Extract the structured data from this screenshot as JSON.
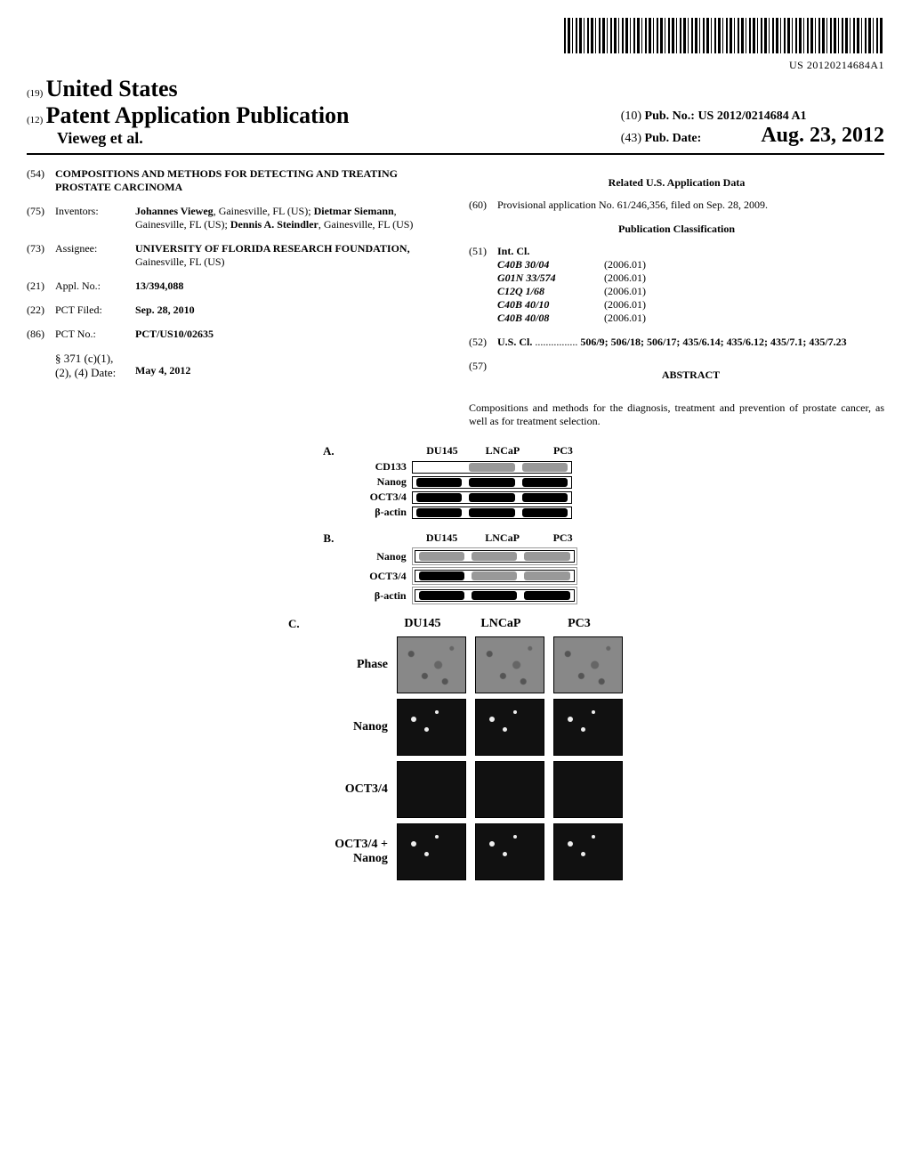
{
  "barcode_number": "US 20120214684A1",
  "authority": {
    "inid": "(19)",
    "value": "United States"
  },
  "doctype": {
    "inid": "(12)",
    "value": "Patent Application Publication"
  },
  "author_line": "Vieweg et al.",
  "pubno": {
    "inid": "(10)",
    "label": "Pub. No.:",
    "value": "US 2012/0214684 A1"
  },
  "pubdate": {
    "inid": "(43)",
    "label": "Pub. Date:",
    "value": "Aug. 23, 2012"
  },
  "title": {
    "inid": "(54)",
    "value": "COMPOSITIONS AND METHODS FOR DETECTING AND TREATING PROSTATE CARCINOMA"
  },
  "inventors": {
    "inid": "(75)",
    "label": "Inventors:",
    "list": [
      {
        "name": "Johannes Vieweg",
        "loc": ", Gainesville, FL (US); "
      },
      {
        "name": "Dietmar Siemann",
        "loc": ", Gainesville, FL (US); "
      },
      {
        "name": "Dennis A. Steindler",
        "loc": ", Gainesville, FL (US)"
      }
    ]
  },
  "assignee": {
    "inid": "(73)",
    "label": "Assignee:",
    "name": "UNIVERSITY OF FLORIDA RESEARCH FOUNDATION,",
    "loc": " Gainesville, FL (US)"
  },
  "applno": {
    "inid": "(21)",
    "label": "Appl. No.:",
    "value": "13/394,088"
  },
  "pctfiled": {
    "inid": "(22)",
    "label": "PCT Filed:",
    "value": "Sep. 28, 2010"
  },
  "pctno": {
    "inid": "(86)",
    "label": "PCT No.:",
    "value": "PCT/US10/02635"
  },
  "s371": {
    "label": "§ 371 (c)(1),",
    "label2": "(2), (4) Date:",
    "value": "May 4, 2012"
  },
  "related_heading": "Related U.S. Application Data",
  "provisional": {
    "inid": "(60)",
    "text": "Provisional application No. 61/246,356, filed on Sep. 28, 2009."
  },
  "classification_heading": "Publication Classification",
  "intcl": {
    "inid": "(51)",
    "label": "Int. Cl.",
    "rows": [
      {
        "code": "C40B 30/04",
        "year": "(2006.01)"
      },
      {
        "code": "G01N 33/574",
        "year": "(2006.01)"
      },
      {
        "code": "C12Q 1/68",
        "year": "(2006.01)"
      },
      {
        "code": "C40B 40/10",
        "year": "(2006.01)"
      },
      {
        "code": "C40B 40/08",
        "year": "(2006.01)"
      }
    ]
  },
  "uscl": {
    "inid": "(52)",
    "label": "U.S. Cl.",
    "value": "506/9; 506/18; 506/17; 435/6.14; 435/6.12; 435/7.1; 435/7.23"
  },
  "abstract": {
    "inid": "(57)",
    "heading": "ABSTRACT",
    "text": "Compositions and methods for the diagnosis, treatment and prevention of prostate cancer, as well as for treatment selection."
  },
  "figureA": {
    "letter": "A.",
    "columns": [
      "DU145",
      "LNCaP",
      "PC3"
    ],
    "rows": [
      {
        "label": "CD133",
        "bands": [
          "none",
          "light",
          "light"
        ]
      },
      {
        "label": "Nanog",
        "bands": [
          "band",
          "band",
          "band"
        ]
      },
      {
        "label": "OCT3/4",
        "bands": [
          "band",
          "band",
          "band"
        ]
      },
      {
        "label": "β-actin",
        "bands": [
          "band",
          "band",
          "band"
        ]
      }
    ]
  },
  "figureB": {
    "letter": "B.",
    "columns": [
      "DU145",
      "LNCaP",
      "PC3"
    ],
    "rows": [
      {
        "label": "Nanog",
        "bands": [
          "light",
          "light",
          "light"
        ]
      },
      {
        "label": "OCT3/4",
        "bands": [
          "band",
          "light",
          "light"
        ]
      },
      {
        "label": "β-actin",
        "bands": [
          "band",
          "band",
          "band"
        ]
      }
    ]
  },
  "figureC": {
    "letter": "C.",
    "columns": [
      "DU145",
      "LNCaP",
      "PC3"
    ],
    "rows": [
      "Phase",
      "Nanog",
      "OCT3/4",
      "OCT3/4 + Nanog"
    ]
  }
}
